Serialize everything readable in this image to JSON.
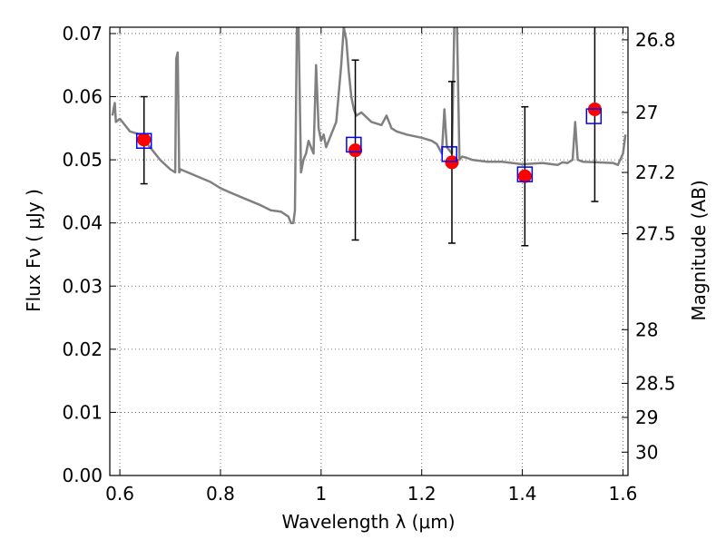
{
  "chart_data": {
    "type": "scatter",
    "xlabel": "Wavelength  λ (μm)",
    "ylabel": "Flux  Fν  ( μJy )",
    "y2label": "Magnitude (AB)",
    "xlim": [
      0.58,
      1.61
    ],
    "ylim": [
      0.0,
      0.071
    ],
    "grid": true,
    "x_ticks": [
      0.6,
      0.8,
      1.0,
      1.2,
      1.4,
      1.6
    ],
    "x_tick_labels": [
      "0.6",
      "0.8",
      "1",
      "1.2",
      "1.4",
      "1.6"
    ],
    "y_ticks": [
      0.0,
      0.01,
      0.02,
      0.03,
      0.04,
      0.05,
      0.06,
      0.07
    ],
    "y_tick_labels": [
      "0.00",
      "0.01",
      "0.02",
      "0.03",
      "0.04",
      "0.05",
      "0.06",
      "0.07"
    ],
    "mag_ticks": [
      {
        "flux": 0.069,
        "label": "26.8"
      },
      {
        "flux": 0.0575,
        "label": "27"
      },
      {
        "flux": 0.048,
        "label": "27.2"
      },
      {
        "flux": 0.0383,
        "label": "27.5"
      },
      {
        "flux": 0.0231,
        "label": "28"
      },
      {
        "flux": 0.0146,
        "label": "28.5"
      },
      {
        "flux": 0.0092,
        "label": "29"
      },
      {
        "flux": 0.0037,
        "label": "30"
      }
    ],
    "template_sed": {
      "color": "#808080",
      "x": [
        0.585,
        0.59,
        0.592,
        0.6,
        0.62,
        0.64,
        0.66,
        0.68,
        0.7,
        0.71,
        0.712,
        0.715,
        0.718,
        0.72,
        0.75,
        0.78,
        0.8,
        0.82,
        0.85,
        0.88,
        0.9,
        0.92,
        0.935,
        0.94,
        0.945,
        0.948,
        0.952,
        0.955,
        0.96,
        0.965,
        0.97,
        0.975,
        0.98,
        0.985,
        0.99,
        0.995,
        1.0,
        1.005,
        1.01,
        1.02,
        1.03,
        1.04,
        1.045,
        1.05,
        1.055,
        1.06,
        1.065,
        1.07,
        1.08,
        1.1,
        1.12,
        1.13,
        1.14,
        1.15,
        1.17,
        1.2,
        1.22,
        1.23,
        1.24,
        1.245,
        1.25,
        1.26,
        1.265,
        1.27,
        1.275,
        1.28,
        1.29,
        1.3,
        1.33,
        1.36,
        1.4,
        1.44,
        1.47,
        1.48,
        1.49,
        1.5,
        1.505,
        1.51,
        1.52,
        1.55,
        1.58,
        1.59,
        1.6,
        1.605
      ],
      "y": [
        0.057,
        0.059,
        0.056,
        0.0565,
        0.0545,
        0.054,
        0.052,
        0.05,
        0.0485,
        0.048,
        0.066,
        0.067,
        0.048,
        0.0485,
        0.0475,
        0.0465,
        0.0455,
        0.0448,
        0.0438,
        0.0428,
        0.042,
        0.0418,
        0.041,
        0.04,
        0.04,
        0.042,
        0.072,
        0.072,
        0.048,
        0.05,
        0.051,
        0.053,
        0.052,
        0.051,
        0.065,
        0.055,
        0.053,
        0.054,
        0.052,
        0.054,
        0.056,
        0.065,
        0.071,
        0.069,
        0.064,
        0.06,
        0.058,
        0.057,
        0.0575,
        0.056,
        0.0555,
        0.057,
        0.055,
        0.0545,
        0.054,
        0.0535,
        0.053,
        0.0525,
        0.051,
        0.058,
        0.052,
        0.051,
        0.072,
        0.072,
        0.05,
        0.0505,
        0.0503,
        0.05,
        0.0497,
        0.0497,
        0.0493,
        0.0495,
        0.0492,
        0.0496,
        0.0495,
        0.05,
        0.056,
        0.05,
        0.0497,
        0.0496,
        0.0495,
        0.0492,
        0.051,
        0.054
      ]
    },
    "model_points": {
      "color": "#0000ff",
      "x": [
        0.648,
        1.065,
        1.255,
        1.405,
        1.542
      ],
      "y": [
        0.053,
        0.0524,
        0.0509,
        0.0477,
        0.0569
      ]
    },
    "observed_points": {
      "color": "#ff0000",
      "x": [
        0.648,
        1.068,
        1.26,
        1.405,
        1.544
      ],
      "y": [
        0.0532,
        0.0515,
        0.0496,
        0.0474,
        0.058
      ],
      "yerr_low": [
        0.007,
        0.0142,
        0.0128,
        0.011,
        0.0146
      ],
      "yerr_high": [
        0.0068,
        0.0143,
        0.0128,
        0.011,
        0.0146
      ]
    }
  }
}
